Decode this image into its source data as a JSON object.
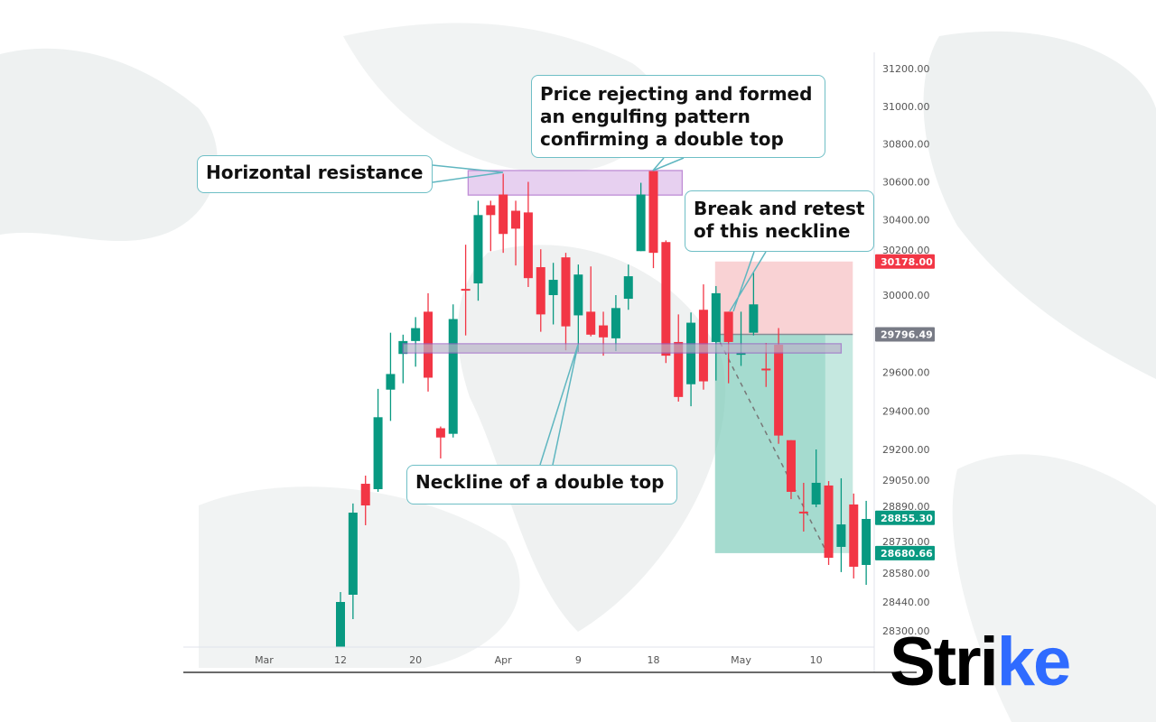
{
  "chart_data": {
    "type": "candlestick",
    "colors": {
      "up": "#089981",
      "down": "#f23645",
      "resistance_zone": "#c99be0",
      "neckline_zone": "#9c8fb8",
      "stop_zone": "#f5b4b8",
      "target_zone": "#7fcdbb",
      "callout_border": "#6fbfc6"
    },
    "y_ticks": [
      "31200.00",
      "31000.00",
      "30800.00",
      "30600.00",
      "30400.00",
      "30200.00",
      "30000.00",
      "29600.00",
      "29400.00",
      "29200.00",
      "29050.00",
      "28890.00",
      "28730.00",
      "28580.00",
      "28440.00",
      "28300.00"
    ],
    "price_tags": [
      {
        "label": "30178.00",
        "value": 30178,
        "color": "#f23645"
      },
      {
        "label": "29796.49",
        "value": 29796.49,
        "color": "#787b86"
      },
      {
        "label": "28855.30",
        "value": 28855.3,
        "color": "#089981"
      },
      {
        "label": "28680.66",
        "value": 28680.66,
        "color": "#089981"
      }
    ],
    "x_ticks": [
      {
        "label": "Mar",
        "at_index": -6.1
      },
      {
        "label": "12",
        "at_index": 0
      },
      {
        "label": "20",
        "at_index": 6
      },
      {
        "label": "Apr",
        "at_index": 13
      },
      {
        "label": "9",
        "at_index": 19
      },
      {
        "label": "18",
        "at_index": 25
      },
      {
        "label": "May",
        "at_index": 32
      },
      {
        "label": "10",
        "at_index": 38
      }
    ],
    "candles_ohlc": [
      [
        28220,
        28488,
        28220,
        28440
      ],
      [
        28475,
        28928,
        28357,
        28881
      ],
      [
        29031,
        29072,
        28819,
        28918
      ],
      [
        29003,
        29514,
        28989,
        29367
      ],
      [
        29510,
        29805,
        29348,
        29591
      ],
      [
        29695,
        29795,
        29543,
        29762
      ],
      [
        29762,
        29886,
        29629,
        29829
      ],
      [
        29914,
        30010,
        29500,
        29572
      ],
      [
        29310,
        29319,
        29156,
        29262
      ],
      [
        29281,
        29952,
        29262,
        29876
      ],
      [
        30033,
        30267,
        29791,
        30024
      ],
      [
        30062,
        30500,
        29971,
        30424
      ],
      [
        30476,
        30500,
        30233,
        30424
      ],
      [
        30533,
        30643,
        30224,
        30324
      ],
      [
        30447,
        30500,
        30157,
        30352
      ],
      [
        30438,
        30600,
        30043,
        30090
      ],
      [
        30148,
        30243,
        29810,
        29900
      ],
      [
        30000,
        30171,
        29848,
        30081
      ],
      [
        30200,
        30224,
        29714,
        29838
      ],
      [
        29895,
        30162,
        29705,
        30109
      ],
      [
        29914,
        30152,
        29786,
        29795
      ],
      [
        29843,
        29914,
        29686,
        29781
      ],
      [
        29776,
        30000,
        29710,
        29933
      ],
      [
        29981,
        30162,
        29924,
        30100
      ],
      [
        30233,
        30595,
        30233,
        30533
      ],
      [
        30657,
        30662,
        30143,
        30224
      ],
      [
        30281,
        30290,
        29648,
        29686
      ],
      [
        29757,
        29900,
        29448,
        29472
      ],
      [
        29538,
        29910,
        29424,
        29857
      ],
      [
        29924,
        30057,
        29510,
        29553
      ],
      [
        29757,
        30048,
        29557,
        30010
      ],
      [
        29914,
        29914,
        29543,
        29757
      ],
      [
        29695,
        29914,
        29633,
        29700
      ],
      [
        29805,
        30119,
        29791,
        29952
      ],
      [
        29619,
        29752,
        29524,
        29614
      ],
      [
        29743,
        29829,
        29229,
        29272
      ],
      [
        29248,
        29248,
        28951,
        28989
      ],
      [
        28886,
        29036,
        28788,
        28881
      ],
      [
        28923,
        29200,
        28909,
        29036
      ],
      [
        29022,
        29045,
        28621,
        28657
      ],
      [
        28712,
        29059,
        28585,
        28823
      ],
      [
        28923,
        28980,
        28554,
        28612
      ],
      [
        28621,
        28942,
        28523,
        28850
      ]
    ],
    "zones": {
      "resistance": {
        "from_index": 10.2,
        "to_index": 27.3,
        "low": 30530,
        "high": 30660
      },
      "neckline": {
        "from_index": 5,
        "to_index": 40,
        "low": 29700,
        "high": 29748
      },
      "short_position": {
        "from_index": 30,
        "to_index": 41,
        "entry": 29796.49,
        "stop": 30178,
        "target": 28680.66,
        "filled_to_index": 38.8
      }
    },
    "annotations": {
      "resistance": "Horizontal resistance",
      "engulfing": [
        "Price rejecting and formed",
        "an engulfing pattern",
        "confirming a double top"
      ],
      "retest": [
        "Break and retest",
        "of this neckline"
      ],
      "neckline": "Neckline of a double top"
    }
  },
  "logo": {
    "text_main": "Stri",
    "text_accent": "ke"
  }
}
